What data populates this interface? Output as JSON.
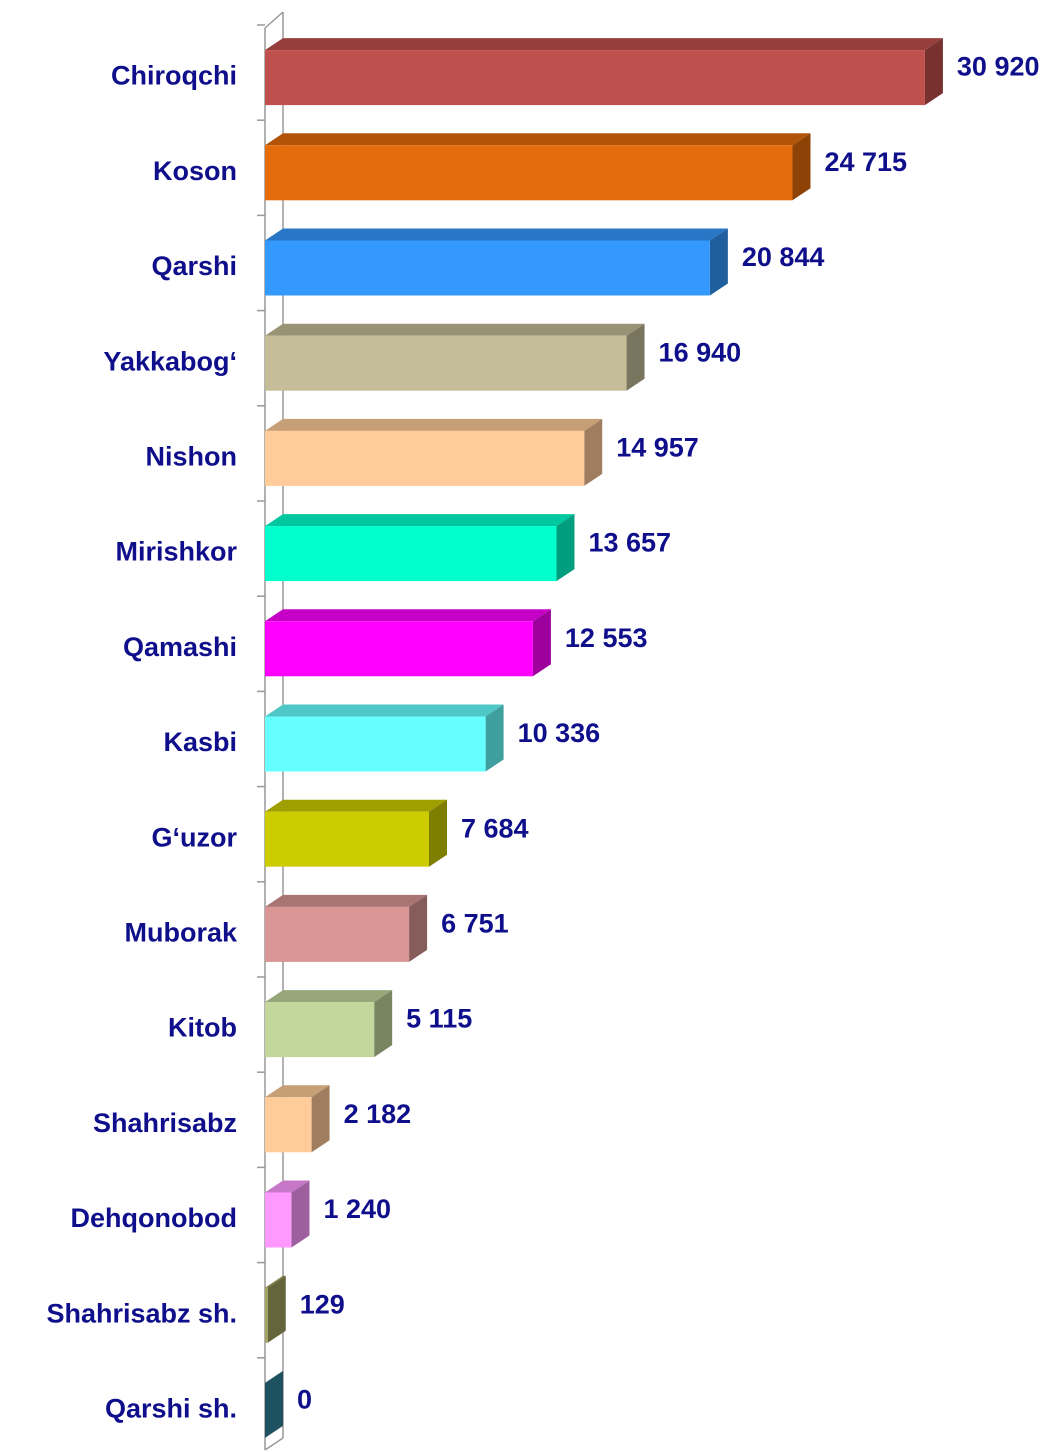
{
  "chart_data": {
    "type": "bar",
    "orientation": "horizontal",
    "categories": [
      "Chiroqchi",
      "Koson",
      "Qarshi",
      "Yakkabog‘",
      "Nishon",
      "Mirishkor",
      "Qamashi",
      "Kasbi",
      "G‘uzor",
      "Muborak",
      "Kitob",
      "Shahrisabz",
      "Dehqonobod",
      "Shahrisabz sh.",
      "Qarshi sh."
    ],
    "values": [
      30920,
      24715,
      20844,
      16940,
      14957,
      13657,
      12553,
      10336,
      7684,
      6751,
      5115,
      2182,
      1240,
      129,
      0
    ],
    "value_labels": [
      "30 920",
      "24 715",
      "20 844",
      "16 940",
      "14 957",
      "13 657",
      "12 553",
      "10 336",
      "7 684",
      "6 751",
      "5 115",
      "2 182",
      "1 240",
      "129",
      "0"
    ],
    "colors": [
      "#c0504d",
      "#e46c0a",
      "#3399ff",
      "#c4bd97",
      "#ffcc99",
      "#00ffcc",
      "#ff00ff",
      "#66ffff",
      "#cccc00",
      "#d99694",
      "#c3d69b",
      "#ffcc99",
      "#ff99ff",
      "#a3a35f",
      "#31859c"
    ],
    "xlim": [
      0,
      35000
    ]
  }
}
